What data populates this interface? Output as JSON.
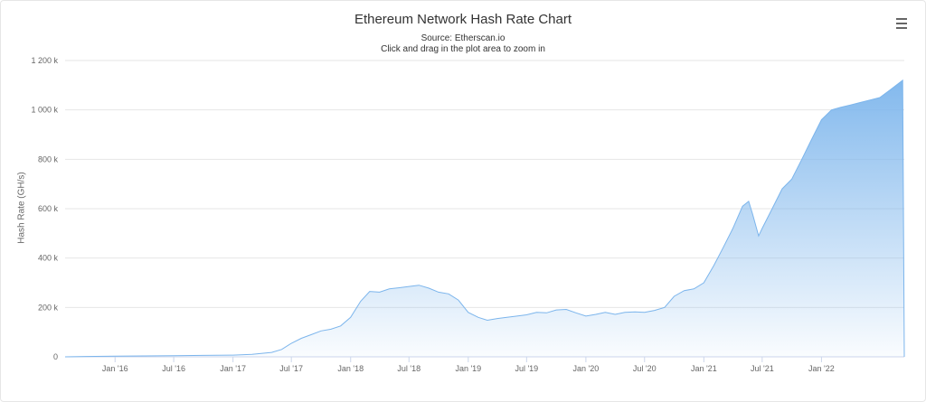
{
  "chart_data": {
    "type": "area",
    "title": "Ethereum Network Hash Rate Chart",
    "subtitle": "Source: Etherscan.io",
    "instruction": "Click and drag in the plot area to zoom in",
    "xlabel": "",
    "ylabel": "Hash Rate (GH/s)",
    "ylim": [
      0,
      1200000
    ],
    "xlim": [
      "2015-07-30",
      "2022-09-15"
    ],
    "grid": true,
    "legend": "none",
    "line_color": "#7cb5ec",
    "fill_top_color": "#7cb5ec",
    "y_ticks": [
      {
        "value": 0,
        "label": "0"
      },
      {
        "value": 200000,
        "label": "200 k"
      },
      {
        "value": 400000,
        "label": "400 k"
      },
      {
        "value": 600000,
        "label": "600 k"
      },
      {
        "value": 800000,
        "label": "800 k"
      },
      {
        "value": 1000000,
        "label": "1 000 k"
      },
      {
        "value": 1200000,
        "label": "1 200 k"
      }
    ],
    "x_ticks": [
      {
        "value": "2016-01-01",
        "label": "Jan '16"
      },
      {
        "value": "2016-07-01",
        "label": "Jul '16"
      },
      {
        "value": "2017-01-01",
        "label": "Jan '17"
      },
      {
        "value": "2017-07-01",
        "label": "Jul '17"
      },
      {
        "value": "2018-01-01",
        "label": "Jan '18"
      },
      {
        "value": "2018-07-01",
        "label": "Jul '18"
      },
      {
        "value": "2019-01-01",
        "label": "Jan '19"
      },
      {
        "value": "2019-07-01",
        "label": "Jul '19"
      },
      {
        "value": "2020-01-01",
        "label": "Jan '20"
      },
      {
        "value": "2020-07-01",
        "label": "Jul '20"
      },
      {
        "value": "2021-01-01",
        "label": "Jan '21"
      },
      {
        "value": "2021-07-01",
        "label": "Jul '21"
      },
      {
        "value": "2022-01-01",
        "label": "Jan '22"
      }
    ],
    "series": [
      {
        "x": [
          "2015-07-30",
          "2015-10-01",
          "2016-01-01",
          "2016-04-01",
          "2016-07-01",
          "2016-10-01",
          "2017-01-01",
          "2017-03-01",
          "2017-05-01",
          "2017-06-01",
          "2017-07-01",
          "2017-08-01",
          "2017-09-01",
          "2017-10-01",
          "2017-11-01",
          "2017-12-01",
          "2018-01-01",
          "2018-02-01",
          "2018-03-01",
          "2018-04-01",
          "2018-05-01",
          "2018-06-01",
          "2018-07-01",
          "2018-08-01",
          "2018-09-01",
          "2018-10-01",
          "2018-11-01",
          "2018-12-01",
          "2019-01-01",
          "2019-02-01",
          "2019-03-01",
          "2019-04-01",
          "2019-05-01",
          "2019-06-01",
          "2019-07-01",
          "2019-08-01",
          "2019-09-01",
          "2019-10-01",
          "2019-11-01",
          "2019-12-01",
          "2020-01-01",
          "2020-02-01",
          "2020-03-01",
          "2020-04-01",
          "2020-05-01",
          "2020-06-01",
          "2020-07-01",
          "2020-08-01",
          "2020-09-01",
          "2020-10-01",
          "2020-11-01",
          "2020-12-01",
          "2021-01-01",
          "2021-02-01",
          "2021-03-01",
          "2021-04-01",
          "2021-05-01",
          "2021-05-20",
          "2021-06-01",
          "2021-06-20",
          "2021-07-01",
          "2021-08-01",
          "2021-09-01",
          "2021-10-01",
          "2021-11-01",
          "2021-12-01",
          "2022-01-01",
          "2022-02-01",
          "2022-03-01",
          "2022-04-01",
          "2022-05-01",
          "2022-06-01",
          "2022-07-01",
          "2022-08-01",
          "2022-09-10",
          "2022-09-15"
        ],
        "y": [
          0,
          1500,
          2500,
          3500,
          4500,
          6000,
          7000,
          10000,
          18000,
          30000,
          55000,
          75000,
          90000,
          105000,
          112000,
          125000,
          160000,
          225000,
          265000,
          262000,
          275000,
          280000,
          285000,
          290000,
          278000,
          262000,
          255000,
          230000,
          180000,
          160000,
          148000,
          155000,
          160000,
          165000,
          170000,
          180000,
          178000,
          190000,
          192000,
          178000,
          165000,
          172000,
          180000,
          172000,
          180000,
          182000,
          180000,
          188000,
          200000,
          245000,
          268000,
          275000,
          300000,
          370000,
          440000,
          520000,
          610000,
          630000,
          580000,
          490000,
          520000,
          600000,
          680000,
          720000,
          800000,
          880000,
          960000,
          1000000,
          1010000,
          1020000,
          1030000,
          1040000,
          1050000,
          1080000,
          1120000,
          0
        ]
      }
    ]
  },
  "menu": {
    "icon": "hamburger-menu-icon"
  }
}
